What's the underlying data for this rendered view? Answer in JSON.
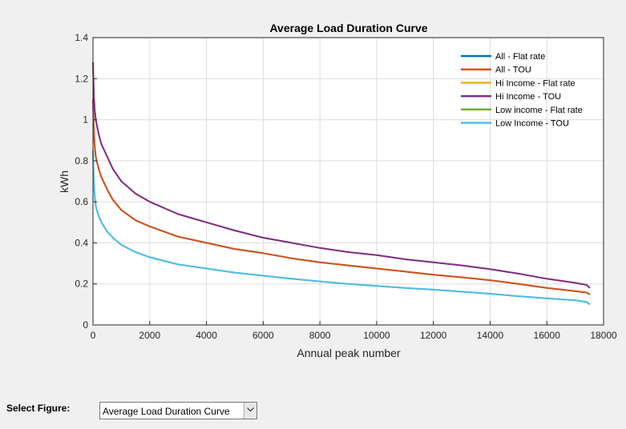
{
  "chart_data": {
    "type": "line",
    "title": "Average Load Duration Curve",
    "xlabel": "Annual peak number",
    "ylabel": "kWh",
    "xlim": [
      0,
      18000
    ],
    "ylim": [
      0,
      1.4
    ],
    "xticks": [
      "0",
      "2000",
      "4000",
      "6000",
      "8000",
      "10000",
      "12000",
      "14000",
      "16000",
      "18000"
    ],
    "yticks": [
      "0",
      "0.2",
      "0.4",
      "0.6",
      "0.8",
      "1",
      "1.2",
      "1.4"
    ],
    "grid": true,
    "legend_position": "top-right",
    "series": [
      {
        "name": "All - Flat rate",
        "color": "#0072BD",
        "x": [
          0,
          30,
          60,
          100,
          200,
          300,
          500,
          700,
          1000,
          1500,
          2000,
          3000,
          4000,
          5000,
          6000,
          7000,
          8000,
          9000,
          10000,
          11000,
          12000,
          13000,
          14000,
          15000,
          16000,
          17000,
          17400,
          17520
        ],
        "y": [
          1.1,
          0.95,
          0.87,
          0.82,
          0.76,
          0.72,
          0.66,
          0.61,
          0.56,
          0.51,
          0.48,
          0.43,
          0.4,
          0.37,
          0.35,
          0.325,
          0.305,
          0.29,
          0.275,
          0.26,
          0.245,
          0.232,
          0.218,
          0.2,
          0.18,
          0.165,
          0.158,
          0.148
        ]
      },
      {
        "name": "All - TOU",
        "color": "#D95319",
        "x": [
          0,
          30,
          60,
          100,
          200,
          300,
          500,
          700,
          1000,
          1500,
          2000,
          3000,
          4000,
          5000,
          6000,
          7000,
          8000,
          9000,
          10000,
          11000,
          12000,
          13000,
          14000,
          15000,
          16000,
          17000,
          17400,
          17520
        ],
        "y": [
          1.1,
          0.95,
          0.87,
          0.82,
          0.76,
          0.72,
          0.66,
          0.61,
          0.56,
          0.51,
          0.48,
          0.43,
          0.4,
          0.37,
          0.35,
          0.325,
          0.305,
          0.29,
          0.275,
          0.26,
          0.245,
          0.232,
          0.218,
          0.2,
          0.18,
          0.165,
          0.158,
          0.148
        ]
      },
      {
        "name": "Hi Income - Flat rate",
        "color": "#EDB120",
        "x": [
          0,
          30,
          60,
          100,
          200,
          300,
          500,
          700,
          1000,
          1500,
          2000,
          3000,
          4000,
          5000,
          6000,
          7000,
          8000,
          9000,
          10000,
          11000,
          12000,
          13000,
          14000,
          15000,
          16000,
          17000,
          17400,
          17520
        ],
        "y": [
          1.28,
          1.12,
          1.05,
          1.0,
          0.93,
          0.88,
          0.82,
          0.76,
          0.7,
          0.64,
          0.6,
          0.54,
          0.5,
          0.46,
          0.425,
          0.4,
          0.375,
          0.355,
          0.34,
          0.32,
          0.305,
          0.29,
          0.272,
          0.25,
          0.225,
          0.205,
          0.195,
          0.18
        ]
      },
      {
        "name": "Hi Income - TOU",
        "color": "#7E2F8E",
        "x": [
          0,
          30,
          60,
          100,
          200,
          300,
          500,
          700,
          1000,
          1500,
          2000,
          3000,
          4000,
          5000,
          6000,
          7000,
          8000,
          9000,
          10000,
          11000,
          12000,
          13000,
          14000,
          15000,
          16000,
          17000,
          17400,
          17520
        ],
        "y": [
          1.28,
          1.12,
          1.05,
          1.0,
          0.93,
          0.88,
          0.82,
          0.76,
          0.7,
          0.64,
          0.6,
          0.54,
          0.5,
          0.46,
          0.425,
          0.4,
          0.375,
          0.355,
          0.34,
          0.32,
          0.305,
          0.29,
          0.272,
          0.25,
          0.225,
          0.205,
          0.195,
          0.18
        ]
      },
      {
        "name": "Low income - Flat rate",
        "color": "#77AC30",
        "x": [
          0,
          30,
          60,
          100,
          200,
          300,
          500,
          700,
          1000,
          1500,
          2000,
          3000,
          4000,
          5000,
          6000,
          7000,
          8000,
          9000,
          10000,
          11000,
          12000,
          13000,
          14000,
          15000,
          16000,
          17000,
          17400,
          17520
        ],
        "y": [
          0.85,
          0.7,
          0.63,
          0.58,
          0.53,
          0.5,
          0.455,
          0.425,
          0.39,
          0.355,
          0.33,
          0.295,
          0.275,
          0.255,
          0.24,
          0.225,
          0.212,
          0.2,
          0.19,
          0.18,
          0.172,
          0.162,
          0.152,
          0.14,
          0.13,
          0.12,
          0.112,
          0.1
        ]
      },
      {
        "name": "Low Income - TOU",
        "color": "#4DBEEE",
        "x": [
          0,
          30,
          60,
          100,
          200,
          300,
          500,
          700,
          1000,
          1500,
          2000,
          3000,
          4000,
          5000,
          6000,
          7000,
          8000,
          9000,
          10000,
          11000,
          12000,
          13000,
          14000,
          15000,
          16000,
          17000,
          17400,
          17520
        ],
        "y": [
          0.85,
          0.7,
          0.63,
          0.58,
          0.53,
          0.5,
          0.455,
          0.425,
          0.39,
          0.355,
          0.33,
          0.295,
          0.275,
          0.255,
          0.24,
          0.225,
          0.212,
          0.2,
          0.19,
          0.18,
          0.172,
          0.162,
          0.152,
          0.14,
          0.13,
          0.12,
          0.112,
          0.1
        ]
      }
    ]
  },
  "controls": {
    "select_label": "Select Figure:",
    "select_value": "Average Load Duration Curve"
  }
}
